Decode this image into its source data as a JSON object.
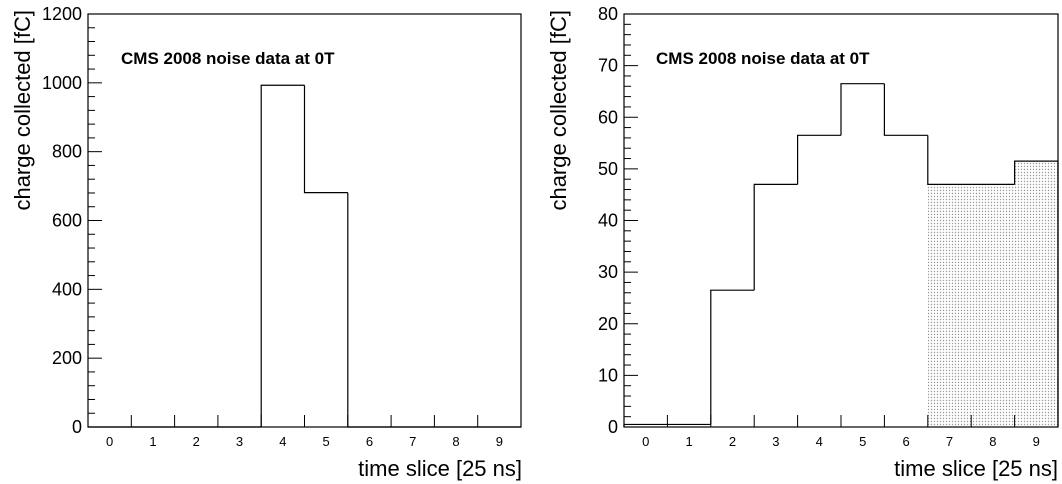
{
  "chart_data": [
    {
      "type": "bar",
      "style": "step-histogram",
      "annotation": "CMS 2008 noise data at 0T",
      "xlabel": "time slice [25 ns]",
      "ylabel": "charge collected [fC]",
      "categories": [
        "0",
        "1",
        "2",
        "3",
        "4",
        "5",
        "6",
        "7",
        "8",
        "9"
      ],
      "values": [
        0,
        0,
        0,
        0,
        993,
        681,
        0,
        0,
        0,
        0
      ],
      "y_ticks": [
        "0",
        "200",
        "400",
        "600",
        "800",
        "1000",
        "1200"
      ],
      "ylim": [
        0,
        1200
      ],
      "shaded_from_index": null,
      "grid": false
    },
    {
      "type": "bar",
      "style": "step-histogram",
      "annotation": "CMS 2008 noise data at 0T",
      "xlabel": "time slice [25 ns]",
      "ylabel": "charge collected [fC]",
      "categories": [
        "0",
        "1",
        "2",
        "3",
        "4",
        "5",
        "6",
        "7",
        "8",
        "9"
      ],
      "values": [
        0.5,
        0.5,
        26.5,
        47,
        56.5,
        66.5,
        56.5,
        47,
        47,
        51.5
      ],
      "y_ticks": [
        "0",
        "10",
        "20",
        "30",
        "40",
        "50",
        "60",
        "70",
        "80"
      ],
      "ylim": [
        0,
        80
      ],
      "shaded_from_index": 7,
      "grid": false
    }
  ]
}
